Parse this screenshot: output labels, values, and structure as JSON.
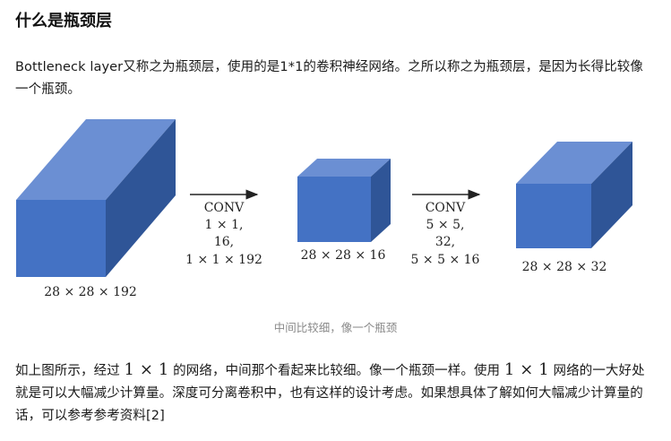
{
  "title": "什么是瓶颈层",
  "intro_para": {
    "text": "Bottleneck layer又称之为瓶颈层，使用的是1*1的卷积神经网络。之所以称之为瓶颈层，是因为长得比较像一个瓶颈。"
  },
  "figure": {
    "colors": {
      "front": "#4472c4",
      "top": "#6b8fd3",
      "side": "#2f5597"
    },
    "stage1_label": "28 × 28 × 192",
    "arrow1": {
      "line1": "CONV",
      "line2": "1 × 1,",
      "line3": "16,",
      "line4": "1 × 1 × 192"
    },
    "stage2_label": "28 × 28 × 16",
    "arrow2": {
      "line1": "CONV",
      "line2": "5 × 5,",
      "line3": "32,",
      "line4": "5 × 5 × 16"
    },
    "stage3_label": "28 × 28 × 32"
  },
  "caption": "中间比较细，像一个瓶颈",
  "body_para": {
    "part1": "如上图所示，经过 ",
    "math1": "1 × 1",
    "part2": " 的网络，中间那个看起来比较细。像一个瓶颈一样。使用 ",
    "math2": "1 × 1",
    "part3": " 网络的一大好处就是可以大幅减少计算量。深度可分离卷积中，也有这样的设计考虑。如果想具体了解如何大幅减少计算量的话，可以参考参考资料",
    "ref": "[2]"
  }
}
